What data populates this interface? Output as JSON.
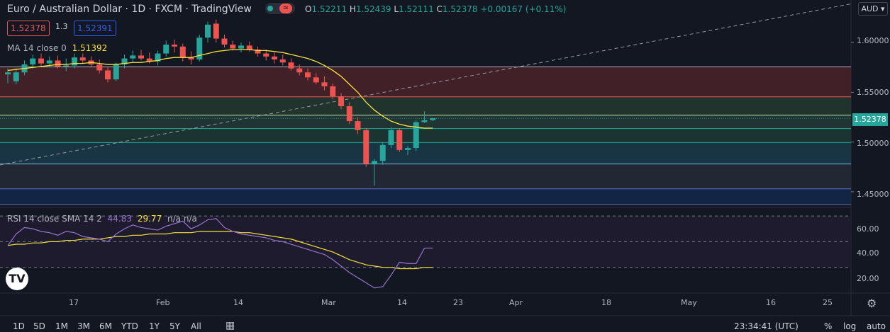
{
  "header": {
    "title": "Euro / Australian Dollar · 1D · FXCM · TradingView",
    "ohlc": {
      "o_label": "O",
      "o": "1.52211",
      "h_label": "H",
      "h": "1.52439",
      "l_label": "L",
      "l": "1.52111",
      "c_label": "C",
      "c": "1.52378",
      "change": "+0.00167 (+0.11%)"
    }
  },
  "trade": {
    "sell": "1.52378",
    "spread": "1.3",
    "buy": "1.52391"
  },
  "indicators": {
    "ma_label": "MA 14 close 0",
    "ma_value": "1.51392",
    "rsi_label": "RSI 14 close SMA 14 2",
    "rsi_value": "44.83",
    "rsi_sma": "29.77",
    "rsi_na": "n/a n/a"
  },
  "currency_button": "AUD",
  "current_price": "1.52378",
  "price_axis": [
    "1.60000",
    "1.55000",
    "1.50000",
    "1.45000"
  ],
  "rsi_axis": [
    "60.00",
    "40.00",
    "20.00"
  ],
  "date_axis": [
    "17",
    "Feb",
    "14",
    "Mar",
    "14",
    "23",
    "Apr",
    "18",
    "May",
    "16",
    "25"
  ],
  "timeframes": [
    "1D",
    "5D",
    "1M",
    "3M",
    "6M",
    "YTD",
    "1Y",
    "5Y",
    "All"
  ],
  "footer": {
    "time": "23:34:41 (UTC)",
    "pct": "%",
    "log": "log",
    "auto": "auto"
  },
  "colors": {
    "bg": "#131722",
    "up": "#26a69a",
    "down": "#ef5350",
    "ma": "#f7e13b",
    "rsi": "#9575cd",
    "fib_red": "#4a2328",
    "fib_green": "#1e3a34",
    "fib_teal": "#1b3b4a",
    "fib_navy": "#14284a"
  },
  "chart_data": {
    "type": "candlestick",
    "title": "Euro / Australian Dollar 1D",
    "ylim": [
      1.435,
      1.625
    ],
    "candles": [
      {
        "o": 1.568,
        "h": 1.574,
        "l": 1.559,
        "c": 1.57
      },
      {
        "o": 1.561,
        "h": 1.574,
        "l": 1.558,
        "c": 1.57
      },
      {
        "o": 1.57,
        "h": 1.582,
        "l": 1.567,
        "c": 1.578
      },
      {
        "o": 1.578,
        "h": 1.588,
        "l": 1.574,
        "c": 1.584
      },
      {
        "o": 1.584,
        "h": 1.589,
        "l": 1.576,
        "c": 1.579
      },
      {
        "o": 1.579,
        "h": 1.586,
        "l": 1.575,
        "c": 1.582
      },
      {
        "o": 1.582,
        "h": 1.587,
        "l": 1.574,
        "c": 1.576
      },
      {
        "o": 1.576,
        "h": 1.584,
        "l": 1.571,
        "c": 1.577
      },
      {
        "o": 1.577,
        "h": 1.589,
        "l": 1.574,
        "c": 1.585
      },
      {
        "o": 1.585,
        "h": 1.589,
        "l": 1.579,
        "c": 1.582
      },
      {
        "o": 1.582,
        "h": 1.586,
        "l": 1.576,
        "c": 1.578
      },
      {
        "o": 1.578,
        "h": 1.583,
        "l": 1.569,
        "c": 1.572
      },
      {
        "o": 1.572,
        "h": 1.575,
        "l": 1.56,
        "c": 1.563
      },
      {
        "o": 1.563,
        "h": 1.58,
        "l": 1.561,
        "c": 1.578
      },
      {
        "o": 1.578,
        "h": 1.588,
        "l": 1.574,
        "c": 1.584
      },
      {
        "o": 1.584,
        "h": 1.592,
        "l": 1.58,
        "c": 1.587
      },
      {
        "o": 1.587,
        "h": 1.593,
        "l": 1.582,
        "c": 1.584
      },
      {
        "o": 1.584,
        "h": 1.59,
        "l": 1.579,
        "c": 1.581
      },
      {
        "o": 1.581,
        "h": 1.592,
        "l": 1.577,
        "c": 1.589
      },
      {
        "o": 1.589,
        "h": 1.602,
        "l": 1.586,
        "c": 1.598
      },
      {
        "o": 1.598,
        "h": 1.603,
        "l": 1.59,
        "c": 1.596
      },
      {
        "o": 1.596,
        "h": 1.599,
        "l": 1.581,
        "c": 1.585
      },
      {
        "o": 1.585,
        "h": 1.591,
        "l": 1.578,
        "c": 1.583
      },
      {
        "o": 1.583,
        "h": 1.608,
        "l": 1.581,
        "c": 1.605
      },
      {
        "o": 1.605,
        "h": 1.621,
        "l": 1.6,
        "c": 1.618
      },
      {
        "o": 1.619,
        "h": 1.623,
        "l": 1.6,
        "c": 1.604
      },
      {
        "o": 1.604,
        "h": 1.608,
        "l": 1.595,
        "c": 1.598
      },
      {
        "o": 1.598,
        "h": 1.602,
        "l": 1.592,
        "c": 1.594
      },
      {
        "o": 1.594,
        "h": 1.6,
        "l": 1.59,
        "c": 1.597
      },
      {
        "o": 1.597,
        "h": 1.601,
        "l": 1.591,
        "c": 1.593
      },
      {
        "o": 1.593,
        "h": 1.596,
        "l": 1.586,
        "c": 1.589
      },
      {
        "o": 1.589,
        "h": 1.593,
        "l": 1.582,
        "c": 1.586
      },
      {
        "o": 1.586,
        "h": 1.59,
        "l": 1.579,
        "c": 1.583
      },
      {
        "o": 1.583,
        "h": 1.588,
        "l": 1.577,
        "c": 1.58
      },
      {
        "o": 1.58,
        "h": 1.584,
        "l": 1.572,
        "c": 1.574
      },
      {
        "o": 1.574,
        "h": 1.578,
        "l": 1.567,
        "c": 1.57
      },
      {
        "o": 1.57,
        "h": 1.574,
        "l": 1.562,
        "c": 1.565
      },
      {
        "o": 1.565,
        "h": 1.569,
        "l": 1.558,
        "c": 1.56
      },
      {
        "o": 1.56,
        "h": 1.566,
        "l": 1.552,
        "c": 1.556
      },
      {
        "o": 1.556,
        "h": 1.559,
        "l": 1.543,
        "c": 1.546
      },
      {
        "o": 1.546,
        "h": 1.549,
        "l": 1.533,
        "c": 1.536
      },
      {
        "o": 1.536,
        "h": 1.54,
        "l": 1.518,
        "c": 1.521
      },
      {
        "o": 1.521,
        "h": 1.525,
        "l": 1.508,
        "c": 1.512
      },
      {
        "o": 1.512,
        "h": 1.514,
        "l": 1.475,
        "c": 1.478
      },
      {
        "o": 1.478,
        "h": 1.483,
        "l": 1.456,
        "c": 1.481
      },
      {
        "o": 1.481,
        "h": 1.5,
        "l": 1.477,
        "c": 1.497
      },
      {
        "o": 1.497,
        "h": 1.515,
        "l": 1.494,
        "c": 1.512
      },
      {
        "o": 1.512,
        "h": 1.514,
        "l": 1.49,
        "c": 1.492
      },
      {
        "o": 1.492,
        "h": 1.496,
        "l": 1.487,
        "c": 1.494
      },
      {
        "o": 1.494,
        "h": 1.522,
        "l": 1.491,
        "c": 1.52
      },
      {
        "o": 1.52,
        "h": 1.531,
        "l": 1.519,
        "c": 1.522
      },
      {
        "o": 1.522,
        "h": 1.524,
        "l": 1.521,
        "c": 1.524
      }
    ],
    "ma": [
      1.572,
      1.573,
      1.574,
      1.575,
      1.576,
      1.577,
      1.578,
      1.578,
      1.579,
      1.579,
      1.58,
      1.579,
      1.578,
      1.578,
      1.579,
      1.58,
      1.58,
      1.581,
      1.582,
      1.584,
      1.585,
      1.585,
      1.585,
      1.587,
      1.589,
      1.591,
      1.592,
      1.593,
      1.593,
      1.593,
      1.592,
      1.592,
      1.591,
      1.59,
      1.588,
      1.586,
      1.584,
      1.581,
      1.577,
      1.572,
      1.566,
      1.558,
      1.55,
      1.54,
      1.532,
      1.526,
      1.521,
      1.518,
      1.516,
      1.515,
      1.514,
      1.514
    ],
    "rsi": [
      47,
      56,
      61,
      60,
      58,
      57,
      55,
      58,
      57,
      54,
      53,
      52,
      50,
      56,
      60,
      63,
      61,
      60,
      59,
      62,
      64,
      66,
      60,
      63,
      67,
      68,
      61,
      58,
      56,
      55,
      54,
      53,
      51,
      50,
      48,
      46,
      44,
      42,
      40,
      36,
      31,
      26,
      22,
      18,
      14,
      15,
      24,
      34,
      33,
      33,
      45,
      45
    ],
    "rsi_sma": [
      47,
      48,
      48,
      49,
      49,
      50,
      50,
      51,
      51,
      52,
      52,
      52,
      53,
      54,
      54,
      55,
      55,
      56,
      56,
      56,
      57,
      57,
      57,
      58,
      58,
      58,
      58,
      58,
      57,
      57,
      56,
      55,
      54,
      53,
      52,
      50,
      48,
      46,
      44,
      42,
      39,
      36,
      34,
      32,
      31,
      30,
      30,
      29,
      29,
      29,
      30,
      30
    ],
    "fib_levels": [
      1.5755,
      1.5455,
      1.527,
      1.5135,
      1.4995,
      1.478,
      1.453
    ],
    "trendline": {
      "start": [
        0,
        1.477
      ],
      "slope": 0.0016
    },
    "price_axis_ticks": [
      1.45,
      1.5,
      1.55,
      1.6
    ],
    "rsi_ylim": [
      10,
      75
    ],
    "rsi_bands": [
      30,
      50,
      70
    ]
  }
}
